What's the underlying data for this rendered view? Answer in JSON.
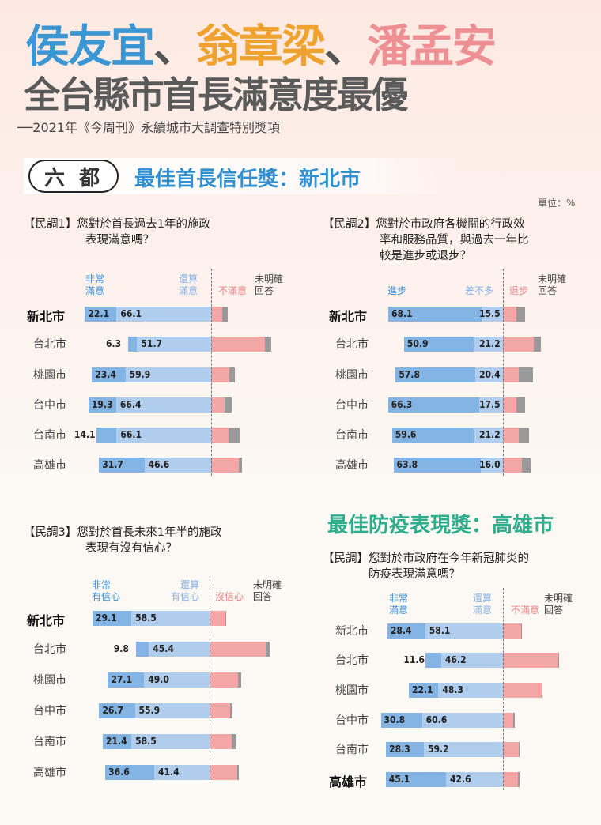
{
  "header": {
    "names": [
      {
        "text": "侯友宜",
        "color": "#3b97d3"
      },
      {
        "text": "、",
        "color": "#555555"
      },
      {
        "text": "翁章梁",
        "color": "#f0a22e"
      },
      {
        "text": "、",
        "color": "#555555"
      },
      {
        "text": "潘孟安",
        "color": "#ee8f93"
      }
    ],
    "title": "全台縣市首長滿意度最優",
    "subtitle": "──2021年《今周刊》永續城市大調查特別獎項"
  },
  "section": {
    "category": "六都",
    "award_trust": "最佳首長信任獎：新北市",
    "award_trust_color": "#2f8fd0",
    "award_epidemic": "最佳防疫表現獎：高雄市",
    "award_epidemic_color": "#2fae8e",
    "unit": "單位：%"
  },
  "colors": {
    "strong_positive": "#84b4e3",
    "mild_positive": "#b0cdee",
    "negative": "#f2a7a6",
    "unknown": "#999999",
    "legend_strong": "#3a8fd8",
    "legend_mild": "#88b2e2",
    "legend_negative": "#ea8585",
    "legend_unknown": "#444444"
  },
  "chart_data": [
    {
      "type": "bar",
      "stacked": "diverging-horizontal",
      "tag": "【民調1】",
      "question": [
        "您對於首長過去1年的施政",
        "表現滿意嗎？"
      ],
      "legend": [
        "非常\n滿意",
        "還算\n滿意",
        "不滿意",
        "未明確\n回答"
      ],
      "categories": [
        "新北市",
        "台北市",
        "桃園市",
        "台中市",
        "台南市",
        "高雄市"
      ],
      "highlight": "新北市",
      "series": [
        {
          "name": "非常滿意",
          "values": [
            22.1,
            6.3,
            23.4,
            19.3,
            14.1,
            31.7
          ],
          "labeled": true
        },
        {
          "name": "還算滿意",
          "values": [
            66.1,
            51.7,
            59.9,
            66.4,
            66.1,
            46.6
          ],
          "labeled": true
        },
        {
          "name": "不滿意",
          "values": [
            7.8,
            37.5,
            12.8,
            9.3,
            12.3,
            19.2
          ],
          "labeled": false
        },
        {
          "name": "未明確回答",
          "values": [
            4.0,
            4.5,
            3.9,
            5.0,
            7.5,
            2.5
          ],
          "labeled": false
        }
      ]
    },
    {
      "type": "bar",
      "stacked": "diverging-horizontal",
      "tag": "【民調2】",
      "question": [
        "您對於市政府各機關的行政效",
        "率和服務品質，與過去一年比",
        "較是進步或退步？"
      ],
      "legend": [
        "進步",
        "差不多",
        "退步",
        "未明確\n回答"
      ],
      "categories": [
        "新北市",
        "台北市",
        "桃園市",
        "台中市",
        "台南市",
        "高雄市"
      ],
      "highlight": "新北市",
      "series": [
        {
          "name": "進步",
          "values": [
            68.1,
            50.9,
            57.8,
            66.3,
            59.6,
            63.8
          ],
          "labeled": true
        },
        {
          "name": "差不多",
          "values": [
            15.5,
            21.2,
            20.4,
            17.5,
            21.2,
            16.0
          ],
          "labeled": true
        },
        {
          "name": "退步",
          "values": [
            10.0,
            22.5,
            11.6,
            9.6,
            11.5,
            13.7
          ],
          "labeled": false
        },
        {
          "name": "未明確回答",
          "values": [
            6.4,
            5.4,
            10.2,
            6.6,
            7.7,
            6.5
          ],
          "labeled": false
        }
      ]
    },
    {
      "type": "bar",
      "stacked": "diverging-horizontal",
      "tag": "【民調3】",
      "question": [
        "您對於首長未來1年半的施政",
        "表現有沒有信心？"
      ],
      "legend": [
        "非常\n有信心",
        "還算\n有信心",
        "沒信心",
        "未明確\n回答"
      ],
      "categories": [
        "新北市",
        "台北市",
        "桃園市",
        "台中市",
        "台南市",
        "高雄市"
      ],
      "highlight": "新北市",
      "series": [
        {
          "name": "非常有信心",
          "values": [
            29.1,
            9.8,
            27.1,
            26.7,
            21.4,
            36.6
          ],
          "labeled": true
        },
        {
          "name": "還算有信心",
          "values": [
            58.5,
            45.4,
            49.0,
            55.9,
            58.5,
            41.4
          ],
          "labeled": true
        },
        {
          "name": "沒信心",
          "values": [
            11.6,
            41.8,
            21.3,
            15.2,
            16.5,
            20.8
          ],
          "labeled": false
        },
        {
          "name": "未明確回答",
          "values": [
            0.8,
            3.0,
            2.6,
            2.2,
            3.6,
            1.2
          ],
          "labeled": false
        }
      ]
    },
    {
      "type": "bar",
      "stacked": "diverging-horizontal",
      "tag": "【民調】",
      "question": [
        "您對於市政府在今年新冠肺炎的",
        "防疫表現滿意嗎？"
      ],
      "legend": [
        "非常\n滿意",
        "還算\n滿意",
        "不滿意",
        "未明確\n回答"
      ],
      "categories": [
        "新北市",
        "台北市",
        "桃園市",
        "台中市",
        "台南市",
        "高雄市"
      ],
      "highlight": "高雄市",
      "series": [
        {
          "name": "非常滿意",
          "values": [
            28.4,
            11.6,
            22.1,
            30.8,
            28.3,
            45.1
          ],
          "labeled": true
        },
        {
          "name": "還算滿意",
          "values": [
            58.1,
            46.2,
            48.3,
            60.6,
            59.2,
            42.6
          ],
          "labeled": true
        },
        {
          "name": "不滿意",
          "values": [
            13.4,
            41.3,
            28.8,
            7.9,
            11.7,
            11.3
          ],
          "labeled": false
        },
        {
          "name": "未明確回答",
          "values": [
            0.1,
            0.9,
            0.8,
            0.7,
            0.8,
            1.0
          ],
          "labeled": false
        }
      ]
    }
  ]
}
